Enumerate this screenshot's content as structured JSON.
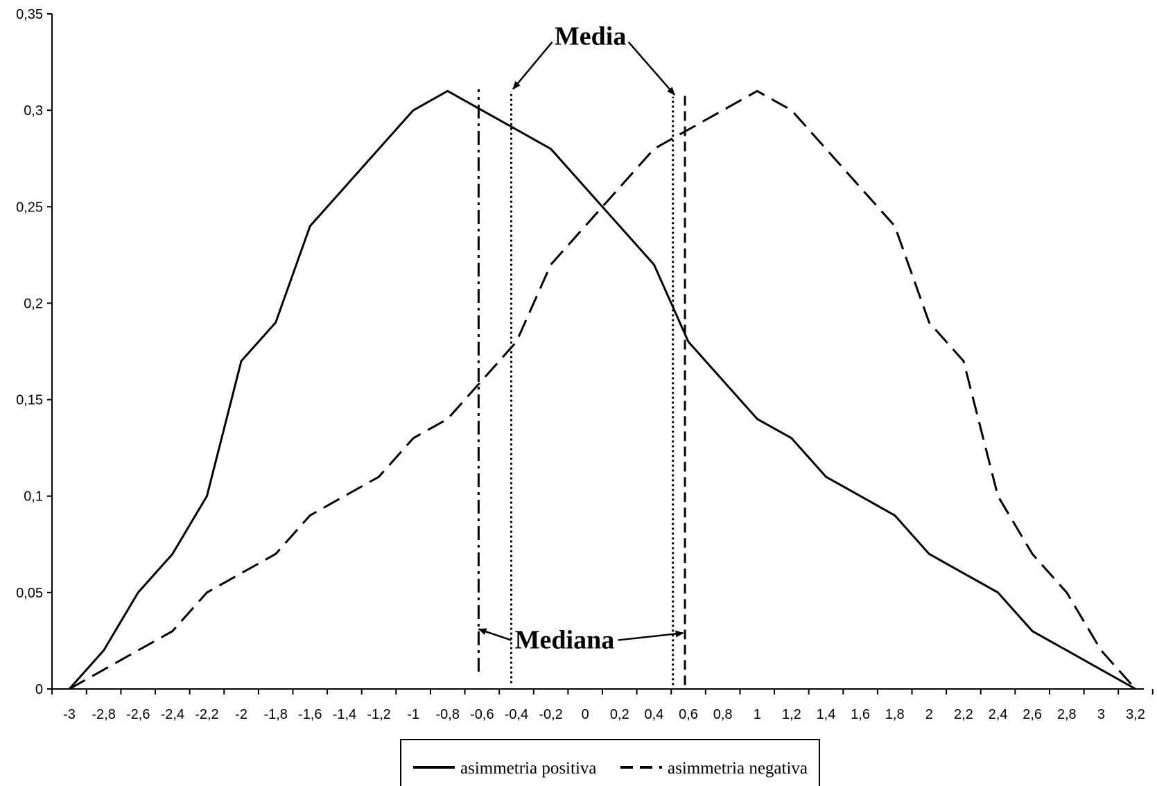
{
  "chart_data": {
    "type": "line",
    "x": [
      -3,
      -2.8,
      -2.6,
      -2.4,
      -2.2,
      -2,
      -1.8,
      -1.6,
      -1.4,
      -1.2,
      -1,
      -0.8,
      -0.6,
      -0.4,
      -0.2,
      0,
      0.2,
      0.4,
      0.6,
      0.8,
      1,
      1.2,
      1.4,
      1.6,
      1.8,
      2,
      2.2,
      2.4,
      2.6,
      2.8,
      3,
      3.2
    ],
    "x_tick_labels": [
      "-3",
      "-2,8",
      "-2,6",
      "-2,4",
      "-2,2",
      "-2",
      "-1,8",
      "-1,6",
      "-1,4",
      "-1,2",
      "-1",
      "-0,8",
      "-0,6",
      "-0,4",
      "-0,2",
      "0",
      "0,2",
      "0,4",
      "0,6",
      "0,8",
      "1",
      "1,2",
      "1,4",
      "1,6",
      "1,8",
      "2",
      "2,2",
      "2,4",
      "2,6",
      "2,8",
      "3",
      "3,2"
    ],
    "y_ticks": [
      0,
      0.05,
      0.1,
      0.15,
      0.2,
      0.25,
      0.3,
      0.35
    ],
    "y_tick_labels": [
      "0",
      "0,05",
      "0,1",
      "0,15",
      "0,2",
      "0,25",
      "0,3",
      "0,35"
    ],
    "ylim": [
      0,
      0.35
    ],
    "xlim": [
      -3,
      3.2
    ],
    "series": [
      {
        "name": "asimmetria positiva",
        "style": "solid",
        "values": [
          0,
          0.02,
          0.05,
          0.07,
          0.1,
          0.17,
          0.19,
          0.24,
          0.26,
          0.28,
          0.3,
          0.31,
          0.3,
          0.29,
          0.28,
          0.26,
          0.24,
          0.22,
          0.18,
          0.16,
          0.14,
          0.13,
          0.11,
          0.1,
          0.09,
          0.07,
          0.06,
          0.05,
          0.03,
          0.02,
          0.01,
          0
        ]
      },
      {
        "name": "asimmetria negativa",
        "style": "dashed",
        "values": [
          0,
          0.01,
          0.02,
          0.03,
          0.05,
          0.06,
          0.07,
          0.09,
          0.1,
          0.11,
          0.13,
          0.14,
          0.16,
          0.18,
          0.22,
          0.24,
          0.26,
          0.28,
          0.29,
          0.3,
          0.31,
          0.3,
          0.28,
          0.26,
          0.24,
          0.19,
          0.17,
          0.1,
          0.07,
          0.05,
          0.02,
          0
        ]
      }
    ],
    "reference_lines": [
      {
        "x": -0.62,
        "y_from": 0.009,
        "y_to": 0.311,
        "style": "dashdot"
      },
      {
        "x": -0.43,
        "y_from": 0.003,
        "y_to": 0.31,
        "style": "dotted"
      },
      {
        "x": 0.51,
        "y_from": 0.002,
        "y_to": 0.307,
        "style": "dotted"
      },
      {
        "x": 0.58,
        "y_from": 0.002,
        "y_to": 0.308,
        "style": "dashed"
      }
    ],
    "annotations": [
      {
        "text": "Media",
        "x": 0.03,
        "y": 0.334,
        "arrow_targets": [
          {
            "x": -0.42,
            "y": 0.311
          },
          {
            "x": 0.52,
            "y": 0.308
          }
        ]
      },
      {
        "text": "Mediana",
        "x": -0.12,
        "y": 0.021,
        "arrow_targets": [
          {
            "x": -0.62,
            "y": 0.031
          },
          {
            "x": 0.57,
            "y": 0.029
          }
        ]
      }
    ],
    "grid": false,
    "legend_position": "bottom-center"
  }
}
